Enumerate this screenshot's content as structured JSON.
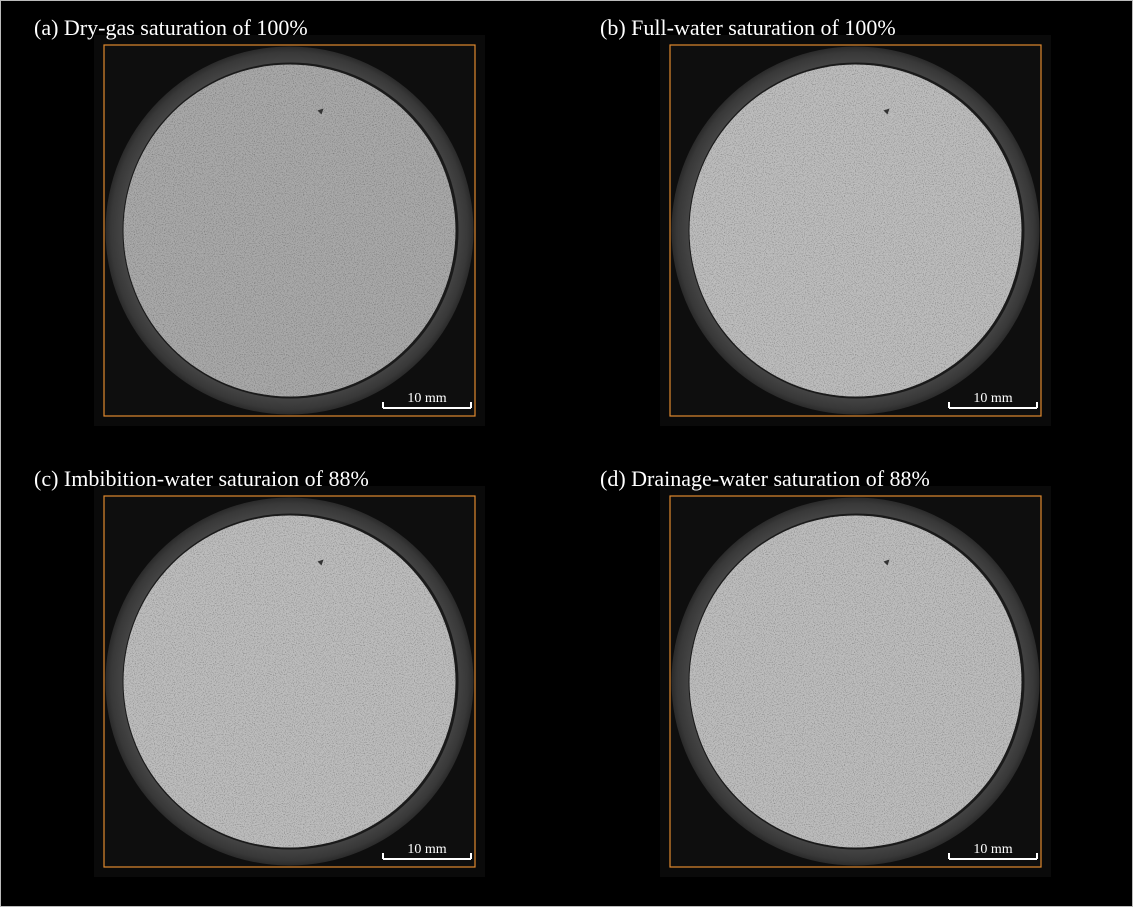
{
  "panels": [
    {
      "label": "(a) Dry-gas saturation of 100%",
      "scale_bar": "10 mm"
    },
    {
      "label": "(b) Full-water saturation of 100%",
      "scale_bar": "10 mm"
    },
    {
      "label": "(c) Imbibition-water saturaion of 88%",
      "scale_bar": "10 mm"
    },
    {
      "label": "(d) Drainage-water saturation of 88%",
      "scale_bar": "10 mm"
    }
  ]
}
